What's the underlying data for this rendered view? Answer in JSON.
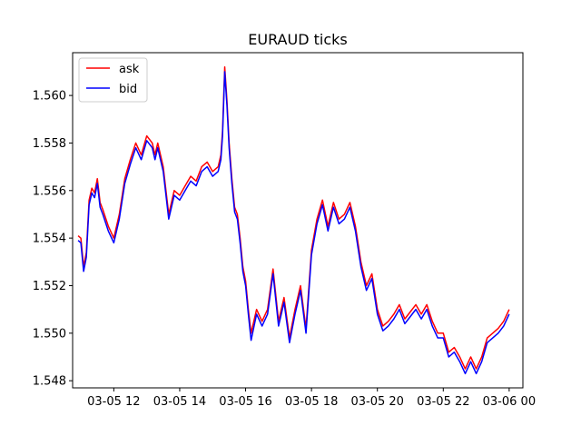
{
  "chart_data": {
    "type": "line",
    "title": "EURAUD ticks",
    "xlabel": "",
    "ylabel": "",
    "x_unit": "time",
    "xlim": [
      "03-05 10:45",
      "03-06 00:25"
    ],
    "ylim": [
      1.5477,
      1.5618
    ],
    "x_ticks": [
      {
        "label": "03-05 12",
        "x": "03-05 12:00"
      },
      {
        "label": "03-05 14",
        "x": "03-05 14:00"
      },
      {
        "label": "03-05 16",
        "x": "03-05 16:00"
      },
      {
        "label": "03-05 18",
        "x": "03-05 18:00"
      },
      {
        "label": "03-05 20",
        "x": "03-05 20:00"
      },
      {
        "label": "03-05 22",
        "x": "03-05 22:00"
      },
      {
        "label": "03-06 00",
        "x": "03-06 00:00"
      }
    ],
    "y_ticks": [
      "1.548",
      "1.550",
      "1.552",
      "1.554",
      "1.556",
      "1.558",
      "1.560"
    ],
    "grid": false,
    "legend_position": "upper-left",
    "x": [
      "03-05 10:55",
      "03-05 11:00",
      "03-05 11:05",
      "03-05 11:10",
      "03-05 11:15",
      "03-05 11:20",
      "03-05 11:25",
      "03-05 11:30",
      "03-05 11:35",
      "03-05 11:40",
      "03-05 11:50",
      "03-05 12:00",
      "03-05 12:10",
      "03-05 12:20",
      "03-05 12:30",
      "03-05 12:40",
      "03-05 12:50",
      "03-05 13:00",
      "03-05 13:10",
      "03-05 13:15",
      "03-05 13:20",
      "03-05 13:30",
      "03-05 13:40",
      "03-05 13:50",
      "03-05 14:00",
      "03-05 14:10",
      "03-05 14:20",
      "03-05 14:30",
      "03-05 14:40",
      "03-05 14:50",
      "03-05 15:00",
      "03-05 15:10",
      "03-05 15:15",
      "03-05 15:18",
      "03-05 15:22",
      "03-05 15:26",
      "03-05 15:30",
      "03-05 15:35",
      "03-05 15:40",
      "03-05 15:45",
      "03-05 15:50",
      "03-05 15:55",
      "03-05 16:00",
      "03-05 16:05",
      "03-05 16:10",
      "03-05 16:20",
      "03-05 16:30",
      "03-05 16:40",
      "03-05 16:50",
      "03-05 17:00",
      "03-05 17:10",
      "03-05 17:20",
      "03-05 17:30",
      "03-05 17:40",
      "03-05 17:50",
      "03-05 18:00",
      "03-05 18:10",
      "03-05 18:20",
      "03-05 18:30",
      "03-05 18:40",
      "03-05 18:50",
      "03-05 19:00",
      "03-05 19:10",
      "03-05 19:20",
      "03-05 19:30",
      "03-05 19:40",
      "03-05 19:50",
      "03-05 20:00",
      "03-05 20:10",
      "03-05 20:20",
      "03-05 20:30",
      "03-05 20:40",
      "03-05 20:50",
      "03-05 21:00",
      "03-05 21:10",
      "03-05 21:20",
      "03-05 21:30",
      "03-05 21:40",
      "03-05 21:50",
      "03-05 22:00",
      "03-05 22:10",
      "03-05 22:20",
      "03-05 22:30",
      "03-05 22:40",
      "03-05 22:50",
      "03-05 23:00",
      "03-05 23:10",
      "03-05 23:20",
      "03-05 23:30",
      "03-05 23:40",
      "03-05 23:50",
      "03-06 00:00"
    ],
    "series": [
      {
        "name": "ask",
        "color": "#ff0000",
        "values": [
          1.5541,
          1.554,
          1.5528,
          1.5534,
          1.5556,
          1.5561,
          1.5559,
          1.5565,
          1.5555,
          1.5552,
          1.5545,
          1.554,
          1.555,
          1.5565,
          1.5573,
          1.558,
          1.5575,
          1.5583,
          1.558,
          1.5575,
          1.558,
          1.557,
          1.555,
          1.556,
          1.5558,
          1.5562,
          1.5566,
          1.5564,
          1.557,
          1.5572,
          1.5568,
          1.557,
          1.5575,
          1.5585,
          1.5612,
          1.5598,
          1.558,
          1.5565,
          1.5553,
          1.555,
          1.554,
          1.5528,
          1.5522,
          1.551,
          1.55,
          1.551,
          1.5505,
          1.551,
          1.5527,
          1.5505,
          1.5515,
          1.5498,
          1.551,
          1.552,
          1.5502,
          1.5535,
          1.5548,
          1.5556,
          1.5545,
          1.5555,
          1.5548,
          1.555,
          1.5555,
          1.5545,
          1.553,
          1.552,
          1.5525,
          1.551,
          1.5503,
          1.5505,
          1.5508,
          1.5512,
          1.5506,
          1.5509,
          1.5512,
          1.5508,
          1.5512,
          1.5505,
          1.55,
          1.55,
          1.5492,
          1.5494,
          1.549,
          1.5485,
          1.549,
          1.5485,
          1.549,
          1.5498,
          1.55,
          1.5502,
          1.5505,
          1.551
        ]
      },
      {
        "name": "bid",
        "color": "#0000ff",
        "values": [
          1.5539,
          1.5538,
          1.5526,
          1.5532,
          1.5554,
          1.5559,
          1.5557,
          1.5563,
          1.5553,
          1.555,
          1.5543,
          1.5538,
          1.5548,
          1.5563,
          1.5571,
          1.5578,
          1.5573,
          1.5581,
          1.5578,
          1.5573,
          1.5578,
          1.5568,
          1.5548,
          1.5558,
          1.5556,
          1.556,
          1.5564,
          1.5562,
          1.5568,
          1.557,
          1.5566,
          1.5568,
          1.5573,
          1.5583,
          1.561,
          1.5596,
          1.5578,
          1.5563,
          1.5551,
          1.5548,
          1.5538,
          1.5526,
          1.552,
          1.5508,
          1.5497,
          1.5508,
          1.5503,
          1.5508,
          1.5525,
          1.5503,
          1.5513,
          1.5496,
          1.5508,
          1.5518,
          1.55,
          1.5533,
          1.5546,
          1.5554,
          1.5543,
          1.5553,
          1.5546,
          1.5548,
          1.5553,
          1.5543,
          1.5528,
          1.5518,
          1.5523,
          1.5508,
          1.5501,
          1.5503,
          1.5506,
          1.551,
          1.5504,
          1.5507,
          1.551,
          1.5506,
          1.551,
          1.5503,
          1.5498,
          1.5498,
          1.549,
          1.5492,
          1.5488,
          1.5483,
          1.5488,
          1.5483,
          1.5488,
          1.5496,
          1.5498,
          1.55,
          1.5503,
          1.5508
        ]
      }
    ]
  }
}
